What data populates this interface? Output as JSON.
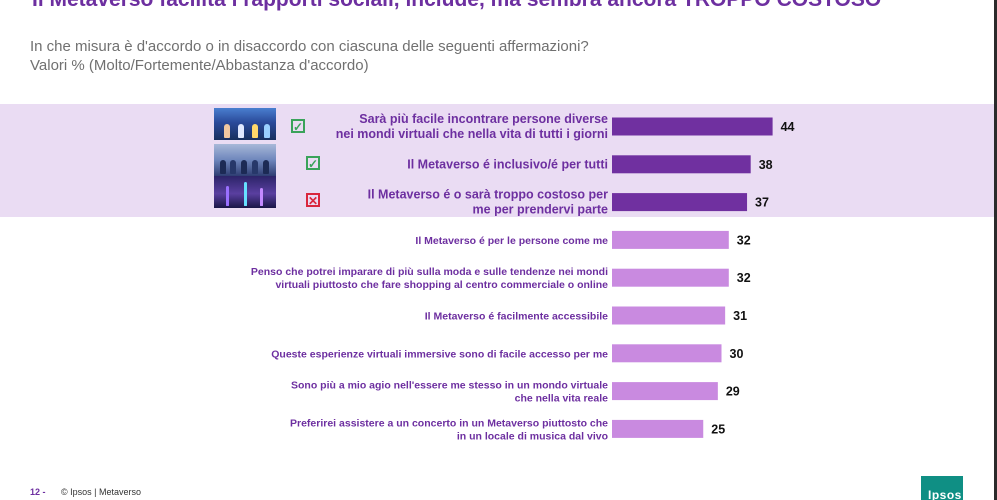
{
  "header": {
    "title": "Il Metaverso facilita i rapporti sociali, include, ma sembra ancora TROPPO COSTOSO",
    "subtitle_line1": "In che misura è d'accordo o in disaccordo con ciascuna delle seguenti affermazioni?",
    "subtitle_line2": "Valori % (Molto/Fortemente/Abbastanza d'accordo)"
  },
  "chart_data": {
    "type": "bar",
    "orientation": "horizontal",
    "title": "",
    "xlabel": "",
    "ylabel": "",
    "xlim": [
      0,
      100
    ],
    "grid": false,
    "legend": "none",
    "colors": {
      "highlight": "#7030a0",
      "default": "#c98ae0"
    },
    "categories": [
      [
        "Sarà più facile incontrare persone diverse",
        "nei mondi virtuali che nella vita di tutti i giorni"
      ],
      [
        "Il Metaverso é inclusivo/é per tutti"
      ],
      [
        "Il Metaverso é o sarà troppo costoso per",
        "me per prendervi parte"
      ],
      [
        "Il Metaverso é per le persone come me"
      ],
      [
        "Penso che potrei imparare di più sulla moda e sulle tendenze nei mondi",
        "virtuali piuttosto che fare shopping al centro commerciale o online"
      ],
      [
        "Il Metaverso é facilmente accessibile"
      ],
      [
        "Queste esperienze virtuali immersive sono di facile accesso per me"
      ],
      [
        "Sono più a mio agio nell'essere me stesso in un mondo virtuale",
        "che nella vita reale"
      ],
      [
        "Preferirei assistere a un concerto in un Metaverso piuttosto che",
        "in un locale di musica dal vivo"
      ]
    ],
    "values": [
      44,
      38,
      37,
      32,
      32,
      31,
      30,
      29,
      25
    ],
    "highlighted": [
      true,
      true,
      true,
      false,
      false,
      false,
      false,
      false,
      false
    ],
    "markers": [
      "check",
      "check",
      "cross",
      "none",
      "none",
      "none",
      "none",
      "none",
      "none"
    ]
  },
  "marker_glyphs": {
    "check": "✓",
    "cross": "✕"
  },
  "footer": {
    "page_number": "12 -",
    "text": "© Ipsos | Metaverso",
    "logo_text": "Ipsos"
  }
}
